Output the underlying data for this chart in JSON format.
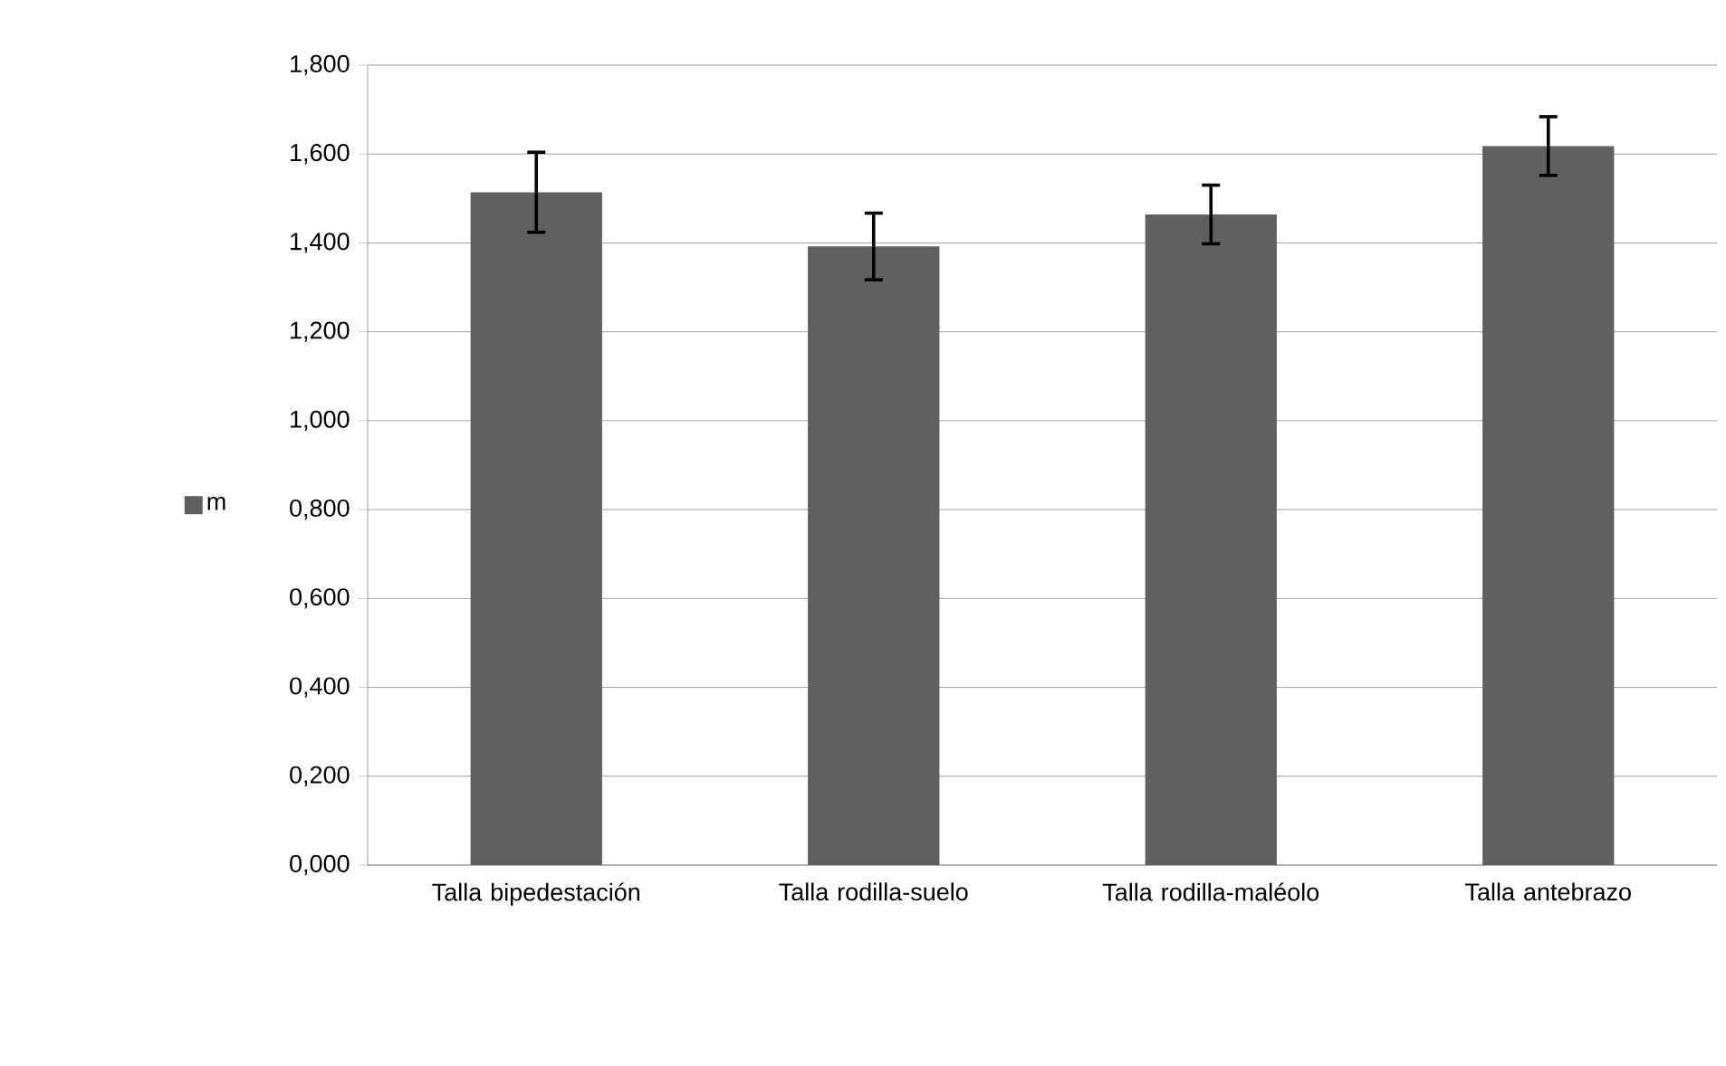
{
  "chart_data": {
    "type": "bar",
    "categories": [
      "Talla bipedestación",
      "Talla rodilla-suelo",
      "Talla rodilla-maléolo",
      "Talla antebrazo"
    ],
    "series": [
      {
        "name": "m",
        "color": "#606060",
        "values": [
          1.514,
          1.392,
          1.464,
          1.618
        ],
        "errors": [
          0.09,
          0.075,
          0.066,
          0.066
        ]
      }
    ],
    "ylim": [
      0,
      1.8
    ],
    "yticks": [
      {
        "value": 0,
        "label": "0,000"
      },
      {
        "value": 0.2,
        "label": "0,200"
      },
      {
        "value": 0.4,
        "label": "0,400"
      },
      {
        "value": 0.6,
        "label": "0,600"
      },
      {
        "value": 0.8,
        "label": "0,800"
      },
      {
        "value": 1.0,
        "label": "1,000"
      },
      {
        "value": 1.2,
        "label": "1,200"
      },
      {
        "value": 1.4,
        "label": "1,400"
      },
      {
        "value": 1.6,
        "label": "1,600"
      },
      {
        "value": 1.8,
        "label": "1,800"
      }
    ],
    "grid": "y",
    "legend": "left"
  }
}
